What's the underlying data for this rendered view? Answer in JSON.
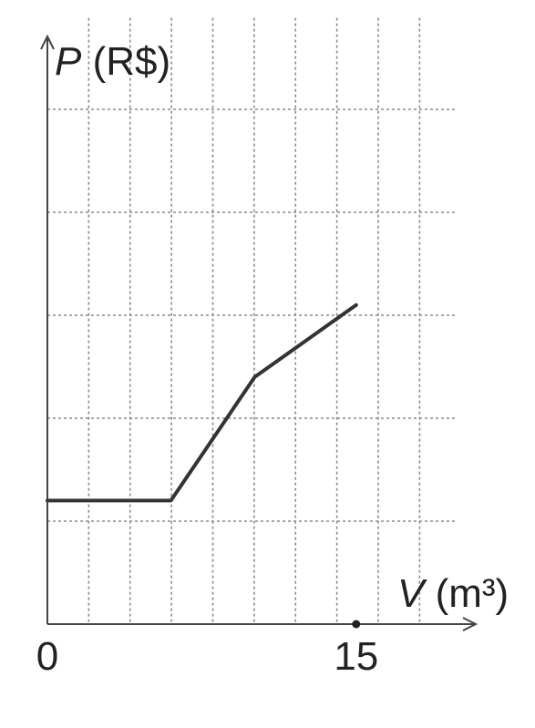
{
  "chart_data": {
    "type": "line",
    "xlabel": {
      "symbol": "V",
      "unit": " (m³)"
    },
    "ylabel": {
      "symbol": "P",
      "unit": " (R$)"
    },
    "x_ticks": [
      {
        "value": 0,
        "label": "0"
      },
      {
        "value": 15,
        "label": "15"
      }
    ],
    "xlim": [
      0,
      18.5
    ],
    "ylim": [
      0,
      5.8
    ],
    "grid": true,
    "grid_x_step": 1.875,
    "grid_y_step": 1,
    "series": [
      {
        "points": [
          {
            "x": 0,
            "y": 1.2
          },
          {
            "x": 5.6,
            "y": 1.2
          },
          {
            "x": 9.4,
            "y": 2.4
          },
          {
            "x": 14.0,
            "y": 3.1
          }
        ]
      }
    ],
    "marker_points": [
      {
        "x": 14.0,
        "y": 0
      }
    ]
  }
}
